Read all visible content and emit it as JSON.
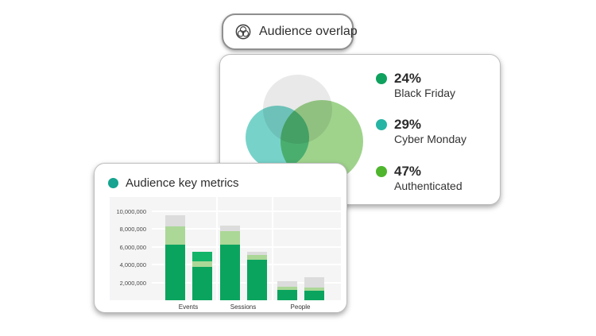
{
  "badge": {
    "label": "Audience overlap",
    "icon": "venn-overlap-icon",
    "border_color": "#8f8f8f"
  },
  "overlap_card": {
    "venn_circles": [
      {
        "name": "Black Friday",
        "color": "#e9e9e9"
      },
      {
        "name": "Cyber Monday",
        "color": "#5fccc1"
      },
      {
        "name": "Authenticated",
        "color": "#95ce7f"
      }
    ],
    "legend": [
      {
        "value": "24%",
        "label": "Black Friday",
        "dot_color": "#0fa15e"
      },
      {
        "value": "29%",
        "label": "Cyber Monday",
        "dot_color": "#26b5a4"
      },
      {
        "value": "47%",
        "label": "Authenticated",
        "dot_color": "#4fb52d"
      }
    ]
  },
  "metrics_card": {
    "title": "Audience key metrics",
    "dot_color": "#16a38f"
  },
  "chart_data": {
    "type": "bar",
    "stacked": true,
    "title": "Audience key metrics",
    "categories": [
      "Events",
      "Sessions",
      "People"
    ],
    "ylim": [
      0,
      11500000
    ],
    "grid": true,
    "segment_colors": {
      "base_green": "#0ba45f",
      "light_green": "#abd797",
      "gray": "#dcdcdc",
      "bright_green": "#12b469"
    },
    "y_ticks": [
      {
        "value": 2000000,
        "label": "2,000,000"
      },
      {
        "value": 4000000,
        "label": "4,000,000"
      },
      {
        "value": 6000000,
        "label": "6,000,000"
      },
      {
        "value": 8000000,
        "label": "8,000,000"
      },
      {
        "value": 10000000,
        "label": "10,000,000"
      }
    ],
    "bars": [
      {
        "category": "Events",
        "position": "left",
        "total": 9500000,
        "segments": [
          {
            "color": "#0ba45f",
            "value": 6200000
          },
          {
            "color": "#abd797",
            "value": 2100000
          },
          {
            "color": "#dcdcdc",
            "value": 1200000
          }
        ]
      },
      {
        "category": "Events",
        "position": "right",
        "total": 5400000,
        "segments": [
          {
            "color": "#0ba45f",
            "value": 3700000
          },
          {
            "color": "#abd797",
            "value": 700000
          },
          {
            "color": "#12b469",
            "value": 1000000
          }
        ]
      },
      {
        "category": "Sessions",
        "position": "left",
        "total": 8400000,
        "segments": [
          {
            "color": "#0ba45f",
            "value": 6200000
          },
          {
            "color": "#abd797",
            "value": 1500000
          },
          {
            "color": "#dcdcdc",
            "value": 700000
          }
        ]
      },
      {
        "category": "Sessions",
        "position": "right",
        "total": 5400000,
        "segments": [
          {
            "color": "#0ba45f",
            "value": 4500000
          },
          {
            "color": "#abd797",
            "value": 550000
          },
          {
            "color": "#dcdcdc",
            "value": 350000
          }
        ]
      },
      {
        "category": "People",
        "position": "left",
        "total": 2150000,
        "segments": [
          {
            "color": "#0ba45f",
            "value": 1200000
          },
          {
            "color": "#abd797",
            "value": 350000
          },
          {
            "color": "#dcdcdc",
            "value": 600000
          }
        ]
      },
      {
        "category": "People",
        "position": "right",
        "total": 2550000,
        "segments": [
          {
            "color": "#0ba45f",
            "value": 1100000
          },
          {
            "color": "#abd797",
            "value": 300000
          },
          {
            "color": "#dcdcdc",
            "value": 1150000
          }
        ]
      }
    ]
  }
}
